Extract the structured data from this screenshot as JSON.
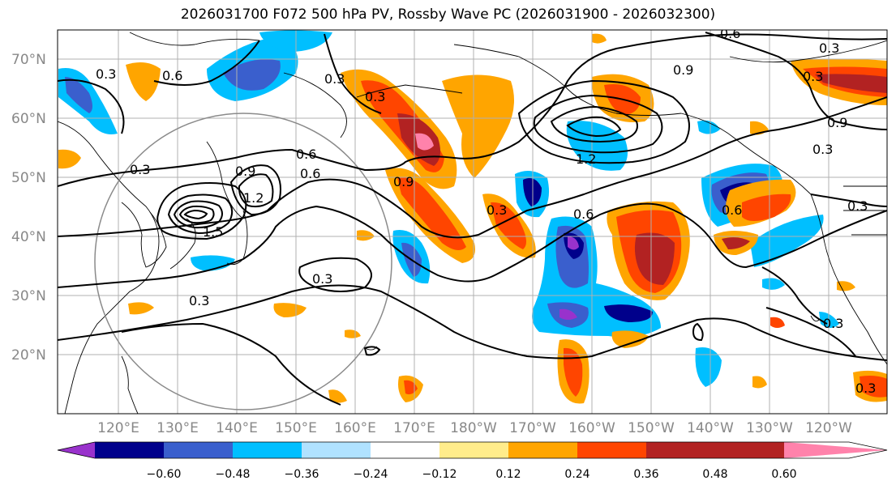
{
  "title": "2026031700 F072 500 hPa PV, Rossby Wave PC (2026031900 - 2026032300)",
  "lat_labels": [
    "70°N",
    "60°N",
    "50°N",
    "40°N",
    "30°N",
    "20°N"
  ],
  "lon_labels": [
    "120°E",
    "130°E",
    "140°E",
    "150°E",
    "160°E",
    "170°E",
    "180°W",
    "170°W",
    "160°W",
    "150°W",
    "140°W",
    "130°W",
    "120°W"
  ],
  "colorbar": {
    "ticks": [
      "−0.60",
      "−0.48",
      "−0.36",
      "−0.24",
      "−0.12",
      "0.12",
      "0.24",
      "0.36",
      "0.48",
      "0.60"
    ],
    "colors": [
      "#9932cc",
      "#00008b",
      "#3a5fcd",
      "#00bfff",
      "#b0e2ff",
      "#ffffff",
      "#ffec8b",
      "#ffa500",
      "#ff4500",
      "#b22222",
      "#ff82ab"
    ]
  },
  "contour_labels": [
    "0.3",
    "0.6",
    "0.3",
    "0.9",
    "0.6",
    "1.2",
    "1.5",
    "0.6",
    "0.3",
    "0.9",
    "1.2",
    "0.9",
    "0.3",
    "0.6",
    "0.3",
    "0.3",
    "0.3",
    "0.3",
    "0.6",
    "0.9",
    "0.3",
    "0.3",
    "0.6",
    "0.3",
    "0.3",
    "0.3"
  ]
}
